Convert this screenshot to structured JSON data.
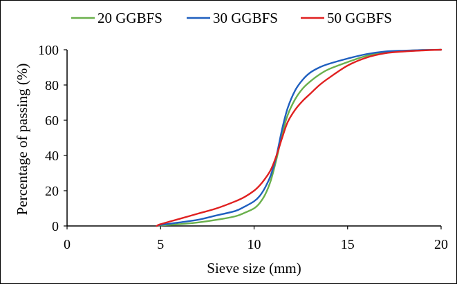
{
  "chart_data": {
    "type": "line",
    "xlabel": "Sieve size (mm)",
    "ylabel": "Percentage of passing (%)",
    "xlim": [
      0,
      20
    ],
    "ylim": [
      0,
      100
    ],
    "xticks": [
      0,
      5,
      10,
      15,
      20
    ],
    "yticks": [
      0,
      20,
      40,
      60,
      80,
      100
    ],
    "grid": false,
    "legend_position": "top",
    "series": [
      {
        "name": "20 GGBFS",
        "color": "#6ab04c",
        "x": [
          4.8,
          5,
          6,
          7,
          8,
          9,
          9.5,
          10,
          10.3,
          10.6,
          10.9,
          11.2,
          11.5,
          11.8,
          12.2,
          12.6,
          13,
          13.5,
          14,
          15,
          16,
          17,
          18,
          19,
          20
        ],
        "y": [
          0,
          0.3,
          1,
          2,
          3.5,
          5.5,
          7.5,
          10,
          13,
          18,
          26,
          38,
          52,
          63,
          72,
          78,
          82,
          86,
          89,
          93,
          96.5,
          98.5,
          99.3,
          99.8,
          100
        ]
      },
      {
        "name": "30 GGBFS",
        "color": "#1f5fbf",
        "x": [
          4.8,
          5,
          6,
          7,
          8,
          9,
          9.5,
          10,
          10.3,
          10.6,
          10.9,
          11.2,
          11.5,
          11.8,
          12.2,
          12.6,
          13,
          13.5,
          14,
          15,
          16,
          17,
          18,
          19,
          20
        ],
        "y": [
          0,
          0.6,
          2,
          3.5,
          6,
          8.5,
          11,
          14,
          17,
          22,
          29,
          40,
          55,
          67,
          77,
          83,
          87,
          90,
          92,
          95,
          97.5,
          99,
          99.5,
          99.8,
          100
        ]
      },
      {
        "name": "50 GGBFS",
        "color": "#e02020",
        "x": [
          4.8,
          5,
          6,
          7,
          8,
          9,
          9.5,
          10,
          10.3,
          10.6,
          10.9,
          11.2,
          11.5,
          11.8,
          12.2,
          12.6,
          13,
          13.5,
          14,
          15,
          16,
          17,
          18,
          19,
          20
        ],
        "y": [
          0,
          1,
          4,
          7,
          10,
          14,
          16.5,
          20,
          23,
          27,
          32,
          40,
          50,
          59,
          66,
          71,
          75,
          80,
          84,
          91,
          95.5,
          98,
          99,
          99.6,
          100
        ]
      }
    ]
  }
}
